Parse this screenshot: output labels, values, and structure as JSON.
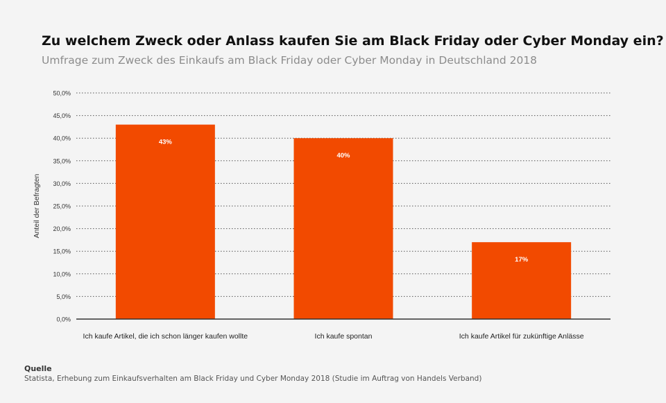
{
  "header": {
    "title": "Zu welchem Zweck oder Anlass kaufen Sie am Black Friday oder Cyber Monday ein?",
    "subtitle": "Umfrage zum Zweck des Einkaufs am Black Friday oder Cyber Monday in Deutschland 2018"
  },
  "source": {
    "label": "Quelle",
    "text": "Statista, Erhebung zum Einkaufsverhalten am Black Friday und Cyber Monday 2018 (Studie im Auftrag von Handels Verband)"
  },
  "colors": {
    "bar": "#f24a00",
    "grid": "#555555",
    "axis": "#333333"
  },
  "chart_data": {
    "type": "bar",
    "title": "Zu welchem Zweck oder Anlass kaufen Sie am Black Friday oder Cyber Monday ein?",
    "subtitle": "Umfrage zum Zweck des Einkaufs am Black Friday oder Cyber Monday in Deutschland 2018",
    "xlabel": "",
    "ylabel": "Anteil der Befragten",
    "categories": [
      "Ich kaufe Artikel, die ich schon länger kaufen wollte",
      "Ich kaufe spontan",
      "Ich kaufe Artikel für zukünftige Anlässe"
    ],
    "values": [
      43,
      40,
      17
    ],
    "data_labels": [
      "43%",
      "40%",
      "17%"
    ],
    "ylim": [
      0,
      50
    ],
    "yticks": [
      0,
      5,
      10,
      15,
      20,
      25,
      30,
      35,
      40,
      45,
      50
    ],
    "ytick_labels": [
      "0,0%",
      "5,0%",
      "10,0%",
      "15,0%",
      "20,0%",
      "25,0%",
      "30,0%",
      "35,0%",
      "40,0%",
      "45,0%",
      "50,0%"
    ],
    "grid": true,
    "legend": "none"
  }
}
